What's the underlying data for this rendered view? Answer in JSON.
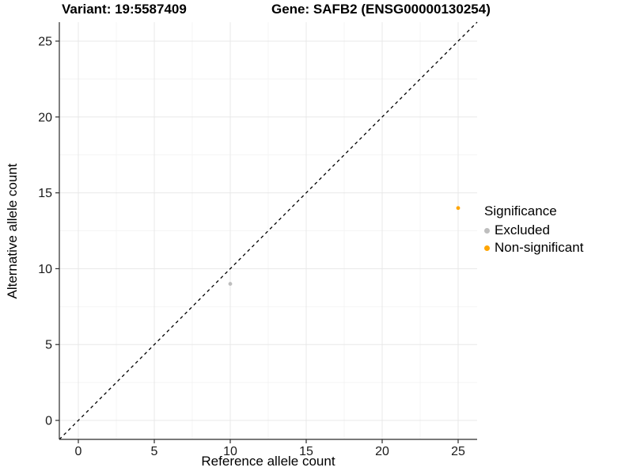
{
  "titles": {
    "variant": "Variant: 19:5587409",
    "gene": "Gene: SAFB2 (ENSG00000130254)"
  },
  "axes": {
    "x_label": "Reference allele count",
    "y_label": "Alternative allele count"
  },
  "legend": {
    "title": "Significance",
    "items": [
      {
        "label": "Excluded",
        "color": "#bebebe"
      },
      {
        "label": "Non-significant",
        "color": "#ffa500"
      }
    ]
  },
  "chart_data": {
    "type": "scatter",
    "title": "Variant: 19:5587409   Gene: SAFB2 (ENSG00000130254)",
    "xlabel": "Reference allele count",
    "ylabel": "Alternative allele count",
    "xlim": [
      -1.25,
      26.25
    ],
    "ylim": [
      -1.25,
      26.25
    ],
    "x_ticks": [
      0,
      5,
      10,
      15,
      20,
      25
    ],
    "y_ticks": [
      0,
      5,
      10,
      15,
      20,
      25
    ],
    "grid": true,
    "legend_title": "Significance",
    "legend_position": "right",
    "series": [
      {
        "name": "Excluded",
        "color": "#bebebe",
        "points": [
          {
            "x": 10,
            "y": 9
          }
        ]
      },
      {
        "name": "Non-significant",
        "color": "#ffa500",
        "points": [
          {
            "x": 25,
            "y": 14
          }
        ]
      }
    ],
    "reference_line": {
      "kind": "abline",
      "slope": 1,
      "intercept": 0,
      "style": "dashed",
      "color": "#000000"
    }
  }
}
